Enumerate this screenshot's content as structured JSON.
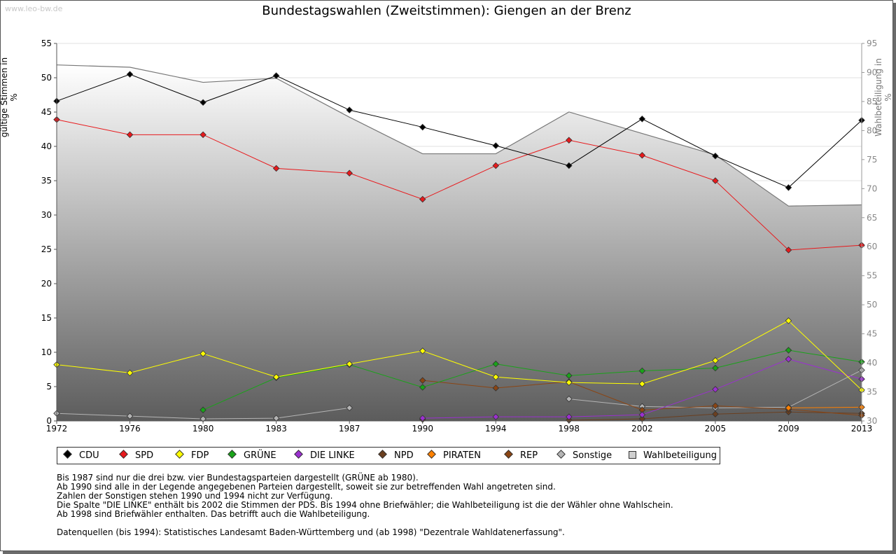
{
  "watermark": "www.leo-bw.de",
  "chart_data": {
    "type": "line",
    "title": "Bundestagswahlen (Zweitstimmen): Giengen an der Brenz",
    "ylabel": "gültige Stimmen in %",
    "y2label": "Wahlbeteiligung in %",
    "x": [
      "1972",
      "1976",
      "1980",
      "1983",
      "1987",
      "1990",
      "1994",
      "1998",
      "2002",
      "2005",
      "2009",
      "2013"
    ],
    "ylim": [
      0,
      55
    ],
    "yticks": [
      0,
      5,
      10,
      15,
      20,
      25,
      30,
      35,
      40,
      45,
      50,
      55
    ],
    "y2lim": [
      30,
      95
    ],
    "y2ticks": [
      30,
      35,
      40,
      45,
      50,
      55,
      60,
      65,
      70,
      75,
      80,
      85,
      90,
      95
    ],
    "grid": true,
    "legend_position": "bottom",
    "series": [
      {
        "name": "CDU",
        "color": "#000000",
        "values": [
          46.6,
          50.5,
          46.4,
          50.3,
          45.3,
          42.8,
          40.1,
          37.2,
          44.0,
          38.6,
          34.0,
          43.8
        ]
      },
      {
        "name": "SPD",
        "color": "#e8191c",
        "values": [
          43.9,
          41.7,
          41.7,
          36.8,
          36.1,
          32.3,
          37.2,
          40.9,
          38.7,
          35.0,
          24.9,
          25.6
        ]
      },
      {
        "name": "FDP",
        "color": "#ffff00",
        "values": [
          8.2,
          7.0,
          9.8,
          6.4,
          8.3,
          10.2,
          6.4,
          5.6,
          5.4,
          8.8,
          14.6,
          4.5
        ]
      },
      {
        "name": "GRÜNE",
        "color": "#19a319",
        "values": [
          null,
          null,
          1.6,
          6.3,
          8.2,
          4.9,
          8.3,
          6.6,
          7.3,
          7.7,
          10.3,
          8.6
        ]
      },
      {
        "name": "DIE LINKE",
        "color": "#9b30d0",
        "values": [
          null,
          null,
          null,
          null,
          null,
          0.4,
          0.6,
          0.6,
          0.9,
          4.6,
          9.0,
          6.1
        ]
      },
      {
        "name": "NPD",
        "color": "#6b3f1f",
        "values": [
          null,
          null,
          null,
          null,
          null,
          0.2,
          null,
          0.1,
          0.3,
          1.0,
          1.3,
          1.1
        ]
      },
      {
        "name": "PIRATEN",
        "color": "#ff8000",
        "values": [
          null,
          null,
          null,
          null,
          null,
          null,
          null,
          null,
          null,
          null,
          1.9,
          2.0
        ]
      },
      {
        "name": "REP",
        "color": "#8b4513",
        "values": [
          null,
          null,
          null,
          null,
          null,
          5.9,
          4.8,
          5.7,
          1.6,
          2.2,
          1.7,
          0.8
        ]
      },
      {
        "name": "Sonstige",
        "color": "#b4b4b4",
        "values": [
          1.1,
          0.7,
          0.3,
          0.4,
          1.9,
          null,
          null,
          3.2,
          2.1,
          1.9,
          2.0,
          7.4
        ]
      }
    ],
    "turnout": {
      "name": "Wahlbeteiligung",
      "color": "#c8c8c8",
      "values": [
        91.3,
        90.9,
        88.3,
        89.0,
        82.3,
        76.0,
        76.0,
        83.2,
        79.5,
        75.8,
        67.0,
        67.2
      ]
    }
  },
  "notes": [
    "Bis 1987 sind nur die drei bzw. vier Bundestagsparteien dargestellt (GRÜNE ab 1980).",
    "Ab 1990 sind alle in der Legende angegebenen Parteien dargestellt, soweit sie zur betreffenden Wahl angetreten sind.",
    "Zahlen der Sonstigen stehen 1990 und 1994 nicht zur Verfügung.",
    "Die Spalte \"DIE LINKE\" enthält bis 2002 die Stimmen der PDS. Bis 1994 ohne Briefwähler; die Wahlbeteiligung ist die der Wähler ohne Wahlschein.",
    "Ab 1998 sind Briefwähler enthalten. Das betrifft auch die Wahlbeteiligung."
  ],
  "sources": "Datenquellen (bis 1994): Statistisches Landesamt Baden-Württemberg und (ab 1998) \"Dezentrale Wahldatenerfassung\"."
}
